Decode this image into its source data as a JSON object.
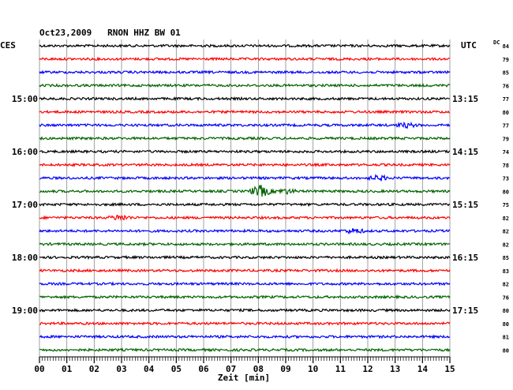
{
  "chart_data": {
    "type": "line",
    "title": "Oct23,2009   RNON HHZ BW 01",
    "left_axis_label": "CES",
    "right_axis_label": "UTC",
    "right_dc_label": "DC",
    "xlabel": "Zeit [min]",
    "x_range": [
      0,
      15
    ],
    "x_ticks": [
      "00",
      "01",
      "02",
      "03",
      "04",
      "05",
      "06",
      "07",
      "08",
      "09",
      "10",
      "11",
      "12",
      "13",
      "14",
      "15"
    ],
    "grid": true,
    "trace_colors": [
      "#000000",
      "#ff0000",
      "#0000ff",
      "#006400"
    ],
    "trace_count": 24,
    "left_hour_labels": [
      {
        "trace": 4,
        "text": "15:00"
      },
      {
        "trace": 8,
        "text": "16:00"
      },
      {
        "trace": 12,
        "text": "17:00"
      },
      {
        "trace": 16,
        "text": "18:00"
      },
      {
        "trace": 20,
        "text": "19:00"
      }
    ],
    "right_utc_labels": [
      {
        "trace": 4,
        "text": "13:15"
      },
      {
        "trace": 8,
        "text": "14:15"
      },
      {
        "trace": 12,
        "text": "15:15"
      },
      {
        "trace": 16,
        "text": "16:15"
      },
      {
        "trace": 20,
        "text": "17:15"
      }
    ],
    "dc_values": [
      "84",
      "79",
      "85",
      "76",
      "77",
      "80",
      "77",
      "79",
      "74",
      "78",
      "73",
      "80",
      "75",
      "82",
      "82",
      "82",
      "85",
      "83",
      "82",
      "76",
      "80",
      "80",
      "81",
      "80"
    ],
    "events": [
      {
        "trace": 11,
        "minute": 8.08,
        "amplitude": 3.5
      },
      {
        "trace": 11,
        "minute": 9.0,
        "amplitude": 1.3
      },
      {
        "trace": 13,
        "minute": 2.95,
        "amplitude": 1.6
      },
      {
        "trace": 10,
        "minute": 12.4,
        "amplitude": 1.4
      },
      {
        "trace": 6,
        "minute": 13.4,
        "amplitude": 1.2
      },
      {
        "trace": 14,
        "minute": 11.5,
        "amplitude": 1.3
      }
    ]
  }
}
